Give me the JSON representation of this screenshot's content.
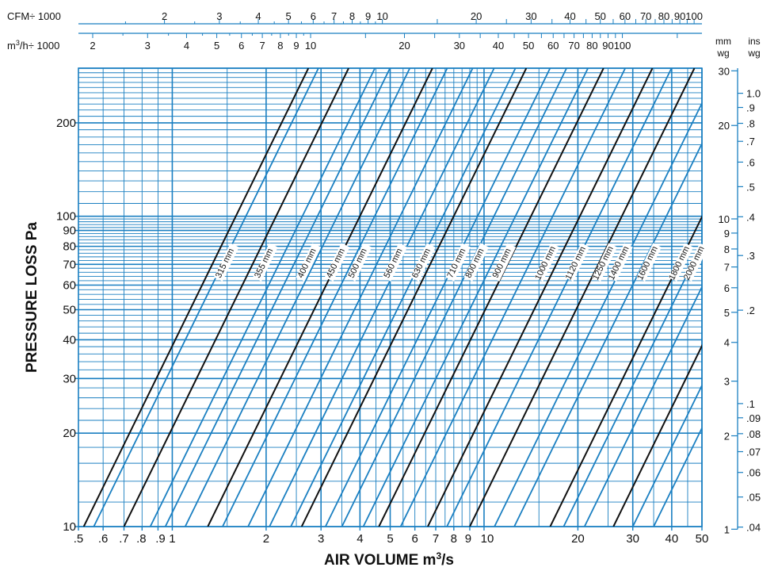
{
  "chart_data": {
    "type": "line",
    "x": {
      "label_main": "AIR VOLUME m",
      "label_sup": "3",
      "label_end": "/s",
      "scale": "log",
      "range": [
        0.5,
        50
      ],
      "ticks": [
        {
          "v": 0.5,
          "t": ".5"
        },
        {
          "v": 0.6,
          "t": ".6"
        },
        {
          "v": 0.7,
          "t": ".7"
        },
        {
          "v": 0.8,
          "t": ".8"
        },
        {
          "v": 0.9,
          "t": ".9"
        },
        {
          "v": 1,
          "t": "1"
        },
        {
          "v": 2,
          "t": "2"
        },
        {
          "v": 3,
          "t": "3"
        },
        {
          "v": 4,
          "t": "4"
        },
        {
          "v": 5,
          "t": "5"
        },
        {
          "v": 6,
          "t": "6"
        },
        {
          "v": 7,
          "t": "7"
        },
        {
          "v": 8,
          "t": "8"
        },
        {
          "v": 9,
          "t": "9"
        },
        {
          "v": 10,
          "t": "10"
        },
        {
          "v": 20,
          "t": "20"
        },
        {
          "v": 30,
          "t": "30"
        },
        {
          "v": 40,
          "t": "40"
        },
        {
          "v": 50,
          "t": "50"
        }
      ]
    },
    "y": {
      "label": "PRESSURE LOSS Pa",
      "scale": "log",
      "range": [
        10,
        300
      ],
      "ticks": [
        {
          "v": 10,
          "t": "10"
        },
        {
          "v": 20,
          "t": "20"
        },
        {
          "v": 30,
          "t": "30"
        },
        {
          "v": 40,
          "t": "40"
        },
        {
          "v": 50,
          "t": "50"
        },
        {
          "v": 60,
          "t": "60"
        },
        {
          "v": 70,
          "t": "70"
        },
        {
          "v": 80,
          "t": "80"
        },
        {
          "v": 90,
          "t": "90"
        },
        {
          "v": 100,
          "t": "100"
        },
        {
          "v": 200,
          "t": "200"
        }
      ]
    },
    "top_scales": [
      {
        "label": "CFM÷ 1000",
        "factor": 2.11888,
        "labels": [
          {
            "v": 2,
            "t": "2"
          },
          {
            "v": 3,
            "t": "3"
          },
          {
            "v": 4,
            "t": "4"
          },
          {
            "v": 5,
            "t": "5"
          },
          {
            "v": 6,
            "t": "6"
          },
          {
            "v": 7,
            "t": "7"
          },
          {
            "v": 8,
            "t": "8"
          },
          {
            "v": 9,
            "t": "9"
          },
          {
            "v": 10,
            "t": "10"
          },
          {
            "v": 20,
            "t": "20"
          },
          {
            "v": 30,
            "t": "30"
          },
          {
            "v": 40,
            "t": "40"
          },
          {
            "v": 50,
            "t": "50"
          },
          {
            "v": 60,
            "t": "60"
          },
          {
            "v": 70,
            "t": "70"
          },
          {
            "v": 80,
            "t": "80"
          },
          {
            "v": 90,
            "t": "90"
          },
          {
            "v": 100,
            "t": "100"
          }
        ]
      },
      {
        "label_main": "m",
        "label_sup": "3",
        "label_end": "/h÷ 1000",
        "factor": 3.6,
        "labels": [
          {
            "v": 2,
            "t": "2"
          },
          {
            "v": 3,
            "t": "3"
          },
          {
            "v": 4,
            "t": "4"
          },
          {
            "v": 5,
            "t": "5"
          },
          {
            "v": 6,
            "t": "6"
          },
          {
            "v": 7,
            "t": "7"
          },
          {
            "v": 8,
            "t": "8"
          },
          {
            "v": 9,
            "t": "9"
          },
          {
            "v": 10,
            "t": "10"
          },
          {
            "v": 20,
            "t": "20"
          },
          {
            "v": 30,
            "t": "30"
          },
          {
            "v": 40,
            "t": "40"
          },
          {
            "v": 50,
            "t": "50"
          },
          {
            "v": 60,
            "t": "60"
          },
          {
            "v": 70,
            "t": "70"
          },
          {
            "v": 80,
            "t": "80"
          },
          {
            "v": 90,
            "t": "90"
          },
          {
            "v": 100,
            "t": "100"
          }
        ]
      }
    ],
    "right_scales": [
      {
        "header": [
          "mm",
          "wg"
        ],
        "factor": 9.80665,
        "labels": [
          {
            "v": 1,
            "t": "1"
          },
          {
            "v": 2,
            "t": "2"
          },
          {
            "v": 3,
            "t": "3"
          },
          {
            "v": 4,
            "t": "4"
          },
          {
            "v": 5,
            "t": "5"
          },
          {
            "v": 6,
            "t": "6"
          },
          {
            "v": 7,
            "t": "7"
          },
          {
            "v": 8,
            "t": "8"
          },
          {
            "v": 9,
            "t": "9"
          },
          {
            "v": 10,
            "t": "10"
          },
          {
            "v": 20,
            "t": "20"
          },
          {
            "v": 30,
            "t": "30"
          }
        ]
      },
      {
        "header": [
          "ins",
          "wg"
        ],
        "factor": 249.089,
        "labels": [
          {
            "v": 0.04,
            "t": ".04"
          },
          {
            "v": 0.05,
            "t": ".05"
          },
          {
            "v": 0.06,
            "t": ".06"
          },
          {
            "v": 0.07,
            "t": ".07"
          },
          {
            "v": 0.08,
            "t": ".08"
          },
          {
            "v": 0.09,
            "t": ".09"
          },
          {
            "v": 0.1,
            "t": ".1"
          },
          {
            "v": 0.2,
            "t": ".2"
          },
          {
            "v": 0.3,
            "t": ".3"
          },
          {
            "v": 0.4,
            "t": ".4"
          },
          {
            "v": 0.5,
            "t": ".5"
          },
          {
            "v": 0.6,
            "t": ".6"
          },
          {
            "v": 0.7,
            "t": ".7"
          },
          {
            "v": 0.8,
            "t": ".8"
          },
          {
            "v": 0.9,
            "t": ".9"
          },
          {
            "v": 1.0,
            "t": "1.0"
          }
        ]
      }
    ],
    "grid": true,
    "series_rule": "pressure loss rises with the 2.05 power of air volume; each line passes through 10 Pa at the listed air volume",
    "exponent": 2.05,
    "series": [
      {
        "name": "315 mm",
        "labeled": true,
        "color": "#111111",
        "x_at_10pa": 0.52,
        "label_x": 1.5,
        "label_y": 70
      },
      {
        "name": "",
        "labeled": false,
        "color": "#1a7fc1",
        "x_at_10pa": 0.56
      },
      {
        "name": "355 mm",
        "labeled": true,
        "color": "#111111",
        "x_at_10pa": 0.7,
        "label_x": 2.0,
        "label_y": 70
      },
      {
        "name": "",
        "labeled": false,
        "color": "#1a7fc1",
        "x_at_10pa": 0.85
      },
      {
        "name": "",
        "labeled": false,
        "color": "#1a7fc1",
        "x_at_10pa": 0.95
      },
      {
        "name": "",
        "labeled": false,
        "color": "#1a7fc1",
        "x_at_10pa": 1.1
      },
      {
        "name": "400 mm",
        "labeled": true,
        "color": "#111111",
        "x_at_10pa": 1.3,
        "label_x": 2.75,
        "label_y": 70
      },
      {
        "name": "",
        "labeled": false,
        "color": "#1a7fc1",
        "x_at_10pa": 1.45
      },
      {
        "name": "450 mm",
        "labeled": true,
        "color": "#1a7fc1",
        "x_at_10pa": 1.75,
        "label_x": 3.4,
        "label_y": 70
      },
      {
        "name": "500 mm",
        "labeled": true,
        "color": "#1a7fc1",
        "x_at_10pa": 2.05,
        "label_x": 4.0,
        "label_y": 70
      },
      {
        "name": "",
        "labeled": false,
        "color": "#1a7fc1",
        "x_at_10pa": 2.4
      },
      {
        "name": "560 mm",
        "labeled": true,
        "color": "#111111",
        "x_at_10pa": 2.6,
        "label_x": 5.2,
        "label_y": 70
      },
      {
        "name": "",
        "labeled": false,
        "color": "#1a7fc1",
        "x_at_10pa": 3.1
      },
      {
        "name": "630 mm",
        "labeled": true,
        "color": "#1a7fc1",
        "x_at_10pa": 3.5,
        "label_x": 6.4,
        "label_y": 70
      },
      {
        "name": "",
        "labeled": false,
        "color": "#1a7fc1",
        "x_at_10pa": 4.1
      },
      {
        "name": "710 mm",
        "labeled": true,
        "color": "#111111",
        "x_at_10pa": 4.6,
        "label_x": 8.3,
        "label_y": 70
      },
      {
        "name": "800 mm",
        "labeled": true,
        "color": "#1a7fc1",
        "x_at_10pa": 5.4,
        "label_x": 9.5,
        "label_y": 70
      },
      {
        "name": "900 mm",
        "labeled": true,
        "color": "#111111",
        "x_at_10pa": 6.6,
        "label_x": 11.6,
        "label_y": 70
      },
      {
        "name": "",
        "labeled": false,
        "color": "#1a7fc1",
        "x_at_10pa": 7.6
      },
      {
        "name": "1000 mm",
        "labeled": true,
        "color": "#111111",
        "x_at_10pa": 9.0,
        "label_x": 16.0,
        "label_y": 70
      },
      {
        "name": "",
        "labeled": false,
        "color": "#1a7fc1",
        "x_at_10pa": 10.8
      },
      {
        "name": "1120 mm",
        "labeled": true,
        "color": "#1a7fc1",
        "x_at_10pa": 12.5,
        "label_x": 20.0,
        "label_y": 70
      },
      {
        "name": "1250 mm",
        "labeled": true,
        "color": "#111111",
        "x_at_10pa": 16.3,
        "label_x": 24.5,
        "label_y": 70
      },
      {
        "name": "1400 mm",
        "labeled": true,
        "color": "#1a7fc1",
        "x_at_10pa": 18.0,
        "label_x": 27.5,
        "label_y": 70
      },
      {
        "name": "1600 mm",
        "labeled": true,
        "color": "#1a7fc1",
        "x_at_10pa": 21.0,
        "label_x": 34.0,
        "label_y": 70
      },
      {
        "name": "1800 mm",
        "labeled": true,
        "color": "#111111",
        "x_at_10pa": 26.0,
        "label_x": 43.0,
        "label_y": 70
      },
      {
        "name": "2000 mm",
        "labeled": true,
        "color": "#1a7fc1",
        "x_at_10pa": 30.0,
        "label_x": 48.0,
        "label_y": 70
      },
      {
        "name": "",
        "labeled": false,
        "color": "#1a7fc1",
        "x_at_10pa": 35.0
      }
    ]
  }
}
